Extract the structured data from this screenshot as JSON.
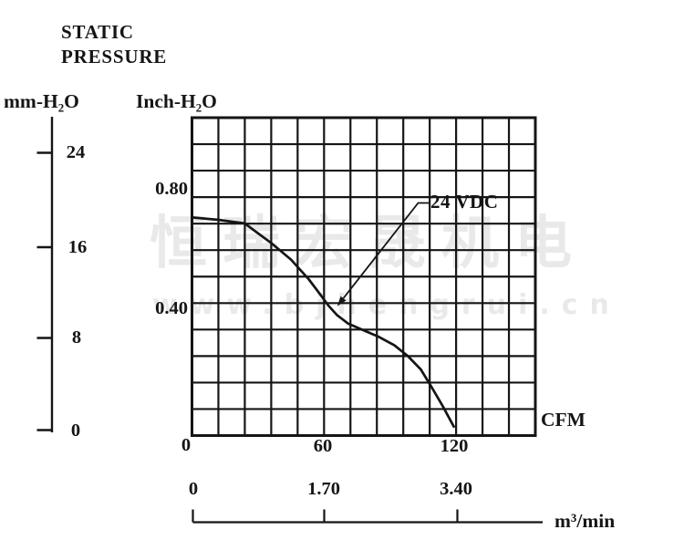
{
  "title": {
    "line1": "STATIC",
    "line2": "PRESSURE"
  },
  "axes": {
    "mm_unit": "mm-H₂O",
    "inch_unit": "Inch-H₂O",
    "cfm_unit": "CFM",
    "m3_unit": "m³/min",
    "mm_ticks": [
      "24",
      "16",
      "8",
      "0"
    ],
    "inch_ticks": [
      "0.80",
      "0.40"
    ],
    "cfm_ticks": [
      "0",
      "60",
      "120"
    ],
    "m3_ticks": [
      "0",
      "1.70",
      "3.40"
    ]
  },
  "curve_label": "24 VDC",
  "watermark": {
    "line1": "恒瑞宏晟机电",
    "line2": "www.bjhengrui.cn"
  },
  "colors": {
    "ink": "#151515",
    "watermark": "#e9e9e9",
    "background": "#ffffff"
  },
  "chart_data": {
    "type": "line",
    "title": "STATIC PRESSURE",
    "x_axis": {
      "primary_unit": "CFM",
      "primary_ticks": [
        0,
        60,
        120
      ],
      "secondary_unit": "m³/min",
      "secondary_ticks": [
        0,
        1.7,
        3.4
      ],
      "range_cfm": [
        0,
        156
      ]
    },
    "y_axis": {
      "primary_unit": "Inch-H₂O",
      "primary_ticks": [
        0.4,
        0.8
      ],
      "secondary_unit": "mm-H₂O",
      "secondary_ticks": [
        0,
        8,
        16,
        24
      ],
      "range_inch": [
        0,
        1.04
      ]
    },
    "grid": {
      "cols": 13,
      "rows": 12
    },
    "series": [
      {
        "name": "24 VDC",
        "points": [
          [
            0,
            0.705
          ],
          [
            12,
            0.697
          ],
          [
            24,
            0.685
          ],
          [
            28,
            0.663
          ],
          [
            36,
            0.62
          ],
          [
            45,
            0.565
          ],
          [
            53,
            0.5
          ],
          [
            58,
            0.452
          ],
          [
            62,
            0.412
          ],
          [
            66,
            0.38
          ],
          [
            71,
            0.352
          ],
          [
            78,
            0.33
          ],
          [
            85,
            0.308
          ],
          [
            92,
            0.28
          ],
          [
            98,
            0.245
          ],
          [
            104,
            0.2
          ],
          [
            109,
            0.14
          ],
          [
            114,
            0.078
          ],
          [
            119,
            0.01
          ]
        ]
      }
    ],
    "annotations": [
      {
        "text": "24 VDC",
        "target": [
          66,
          0.41
        ]
      }
    ],
    "max_static_pressure_inch": 0.705,
    "max_airflow_cfm": 120
  }
}
